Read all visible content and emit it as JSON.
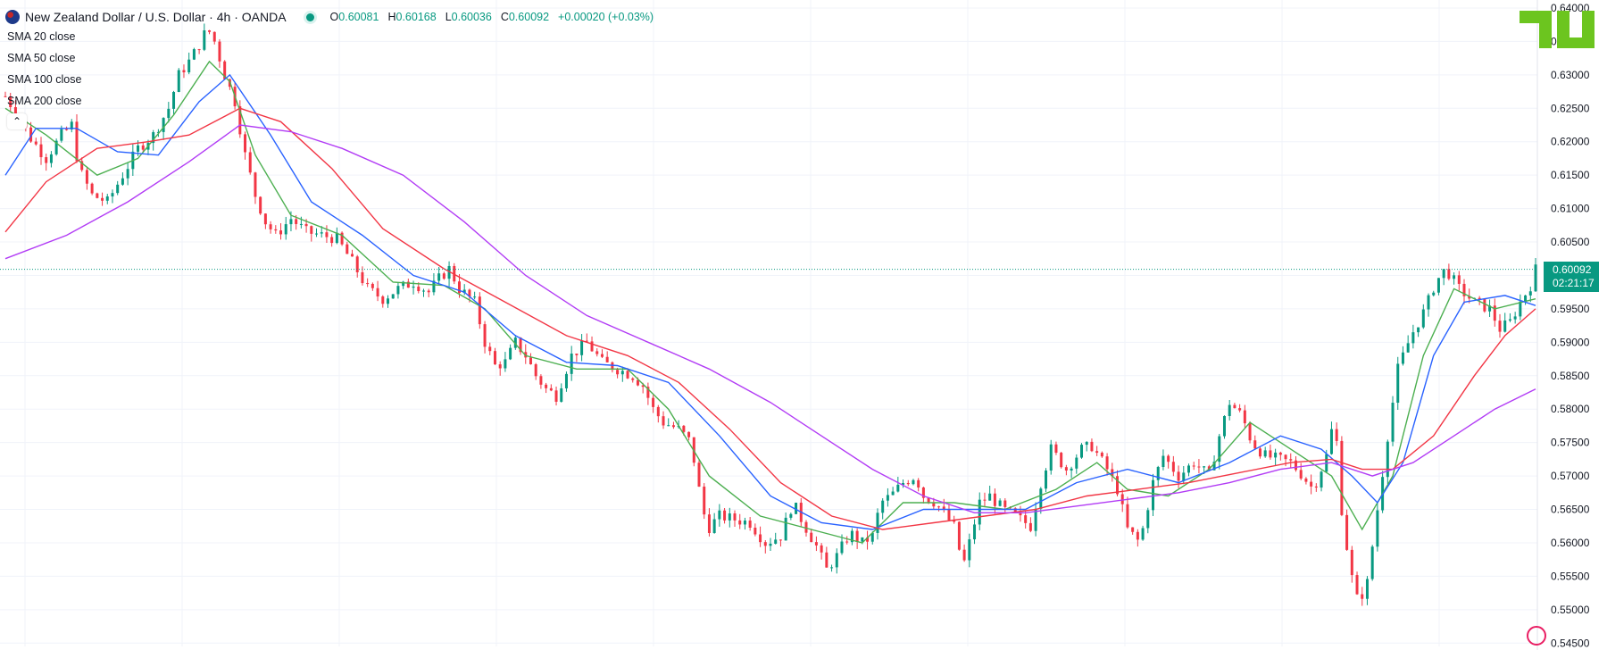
{
  "header": {
    "symbol": "New Zealand Dollar / U.S. Dollar · 4h · OANDA",
    "open_label": "O",
    "open": "0.60081",
    "high_label": "H",
    "high": "0.60168",
    "low_label": "L",
    "low": "0.60036",
    "close_label": "C",
    "close": "0.60092",
    "change": "+0.00020 (+0.03%)"
  },
  "indicators": [
    {
      "label": "SMA",
      "params": "20 close",
      "color": "#4caf50"
    },
    {
      "label": "SMA",
      "params": "50 close",
      "color": "#2962ff"
    },
    {
      "label": "SMA",
      "params": "100 close",
      "color": "#f23645"
    },
    {
      "label": "SMA",
      "params": "200 close",
      "color": "#b23cf5"
    }
  ],
  "price_badge": {
    "price": "0.60092",
    "countdown": "02:21:17"
  },
  "colors": {
    "up": "#089981",
    "down": "#f23645",
    "grid": "#f0f3fa",
    "axis_text": "#131722"
  },
  "chart_data": {
    "type": "candlestick",
    "title": "New Zealand Dollar / U.S. Dollar · 4h · OANDA",
    "y_axis_ticks": [
      "0.54500",
      "0.55000",
      "0.55500",
      "0.56000",
      "0.56500",
      "0.57000",
      "0.57500",
      "0.58000",
      "0.58500",
      "0.59000",
      "0.59500",
      "0.60000",
      "0.60500",
      "0.61000",
      "0.61500",
      "0.62000",
      "0.62500",
      "0.63000",
      "0.63500",
      "0.64000"
    ],
    "ylim": [
      0.5445,
      0.6412
    ],
    "last_price": 0.60092,
    "grid": true,
    "price_path": [
      [
        0,
        0.6268
      ],
      [
        12,
        0.624
      ],
      [
        25,
        0.6205
      ],
      [
        40,
        0.6175
      ],
      [
        55,
        0.621
      ],
      [
        65,
        0.6225
      ],
      [
        72,
        0.616
      ],
      [
        85,
        0.612
      ],
      [
        100,
        0.611
      ],
      [
        115,
        0.615
      ],
      [
        130,
        0.619
      ],
      [
        145,
        0.621
      ],
      [
        160,
        0.625
      ],
      [
        170,
        0.63
      ],
      [
        180,
        0.632
      ],
      [
        190,
        0.6345
      ],
      [
        198,
        0.637
      ],
      [
        205,
        0.635
      ],
      [
        215,
        0.63
      ],
      [
        225,
        0.626
      ],
      [
        235,
        0.618
      ],
      [
        245,
        0.612
      ],
      [
        255,
        0.608
      ],
      [
        265,
        0.606
      ],
      [
        280,
        0.6085
      ],
      [
        295,
        0.6065
      ],
      [
        310,
        0.606
      ],
      [
        325,
        0.6055
      ],
      [
        340,
        0.602
      ],
      [
        355,
        0.598
      ],
      [
        370,
        0.5965
      ],
      [
        385,
        0.598
      ],
      [
        400,
        0.599
      ],
      [
        415,
        0.5975
      ],
      [
        425,
        0.5995
      ],
      [
        435,
        0.601
      ],
      [
        445,
        0.598
      ],
      [
        460,
        0.596
      ],
      [
        470,
        0.59
      ],
      [
        480,
        0.5865
      ],
      [
        490,
        0.587
      ],
      [
        500,
        0.59
      ],
      [
        510,
        0.588
      ],
      [
        520,
        0.585
      ],
      [
        530,
        0.583
      ],
      [
        540,
        0.582
      ],
      [
        555,
        0.588
      ],
      [
        570,
        0.59
      ],
      [
        585,
        0.587
      ],
      [
        600,
        0.586
      ],
      [
        615,
        0.585
      ],
      [
        625,
        0.5835
      ],
      [
        635,
        0.58
      ],
      [
        645,
        0.578
      ],
      [
        660,
        0.577
      ],
      [
        672,
        0.575
      ],
      [
        680,
        0.568
      ],
      [
        688,
        0.562
      ],
      [
        700,
        0.564
      ],
      [
        715,
        0.5635
      ],
      [
        730,
        0.563
      ],
      [
        745,
        0.56
      ],
      [
        760,
        0.561
      ],
      [
        772,
        0.566
      ],
      [
        782,
        0.563
      ],
      [
        795,
        0.5595
      ],
      [
        805,
        0.556
      ],
      [
        815,
        0.558
      ],
      [
        828,
        0.5615
      ],
      [
        840,
        0.56
      ],
      [
        850,
        0.561
      ],
      [
        858,
        0.566
      ],
      [
        868,
        0.567
      ],
      [
        880,
        0.569
      ],
      [
        892,
        0.57
      ],
      [
        900,
        0.567
      ],
      [
        912,
        0.566
      ],
      [
        922,
        0.564
      ],
      [
        932,
        0.562
      ],
      [
        938,
        0.556
      ],
      [
        945,
        0.56
      ],
      [
        955,
        0.566
      ],
      [
        965,
        0.567
      ],
      [
        978,
        0.565
      ],
      [
        990,
        0.564
      ],
      [
        1005,
        0.5625
      ],
      [
        1015,
        0.569
      ],
      [
        1025,
        0.574
      ],
      [
        1040,
        0.571
      ],
      [
        1055,
        0.574
      ],
      [
        1065,
        0.5745
      ],
      [
        1080,
        0.571
      ],
      [
        1090,
        0.568
      ],
      [
        1100,
        0.562
      ],
      [
        1112,
        0.56
      ],
      [
        1125,
        0.569
      ],
      [
        1135,
        0.573
      ],
      [
        1150,
        0.57
      ],
      [
        1165,
        0.572
      ],
      [
        1180,
        0.57
      ],
      [
        1190,
        0.576
      ],
      [
        1200,
        0.581
      ],
      [
        1212,
        0.579
      ],
      [
        1222,
        0.575
      ],
      [
        1235,
        0.573
      ],
      [
        1248,
        0.5725
      ],
      [
        1260,
        0.572
      ],
      [
        1272,
        0.57
      ],
      [
        1282,
        0.568
      ],
      [
        1295,
        0.573
      ],
      [
        1303,
        0.579
      ],
      [
        1310,
        0.565
      ],
      [
        1318,
        0.556
      ],
      [
        1326,
        0.551
      ],
      [
        1335,
        0.554
      ],
      [
        1345,
        0.565
      ],
      [
        1355,
        0.576
      ],
      [
        1365,
        0.586
      ],
      [
        1378,
        0.591
      ],
      [
        1392,
        0.595
      ],
      [
        1402,
        0.599
      ],
      [
        1412,
        0.601
      ],
      [
        1425,
        0.598
      ],
      [
        1440,
        0.596
      ],
      [
        1455,
        0.595
      ],
      [
        1465,
        0.592
      ],
      [
        1475,
        0.593
      ],
      [
        1485,
        0.596
      ],
      [
        1495,
        0.5985
      ],
      [
        1500,
        0.6009
      ]
    ],
    "x_max": 1500,
    "series": [
      {
        "name": "SMA 20 close",
        "color": "#4caf50",
        "points": [
          [
            0,
            0.625
          ],
          [
            40,
            0.621
          ],
          [
            90,
            0.615
          ],
          [
            130,
            0.6175
          ],
          [
            165,
            0.624
          ],
          [
            200,
            0.632
          ],
          [
            220,
            0.629
          ],
          [
            245,
            0.618
          ],
          [
            280,
            0.609
          ],
          [
            330,
            0.606
          ],
          [
            380,
            0.599
          ],
          [
            430,
            0.5985
          ],
          [
            470,
            0.595
          ],
          [
            510,
            0.588
          ],
          [
            560,
            0.586
          ],
          [
            610,
            0.586
          ],
          [
            650,
            0.58
          ],
          [
            690,
            0.57
          ],
          [
            740,
            0.564
          ],
          [
            790,
            0.562
          ],
          [
            840,
            0.56
          ],
          [
            880,
            0.566
          ],
          [
            930,
            0.566
          ],
          [
            980,
            0.565
          ],
          [
            1030,
            0.568
          ],
          [
            1070,
            0.572
          ],
          [
            1100,
            0.568
          ],
          [
            1140,
            0.567
          ],
          [
            1180,
            0.571
          ],
          [
            1220,
            0.578
          ],
          [
            1260,
            0.574
          ],
          [
            1300,
            0.57
          ],
          [
            1330,
            0.562
          ],
          [
            1360,
            0.57
          ],
          [
            1390,
            0.588
          ],
          [
            1420,
            0.598
          ],
          [
            1460,
            0.595
          ],
          [
            1500,
            0.5965
          ]
        ]
      },
      {
        "name": "SMA 50 close",
        "color": "#2962ff",
        "points": [
          [
            0,
            0.615
          ],
          [
            30,
            0.622
          ],
          [
            70,
            0.622
          ],
          [
            110,
            0.6185
          ],
          [
            150,
            0.618
          ],
          [
            190,
            0.626
          ],
          [
            220,
            0.63
          ],
          [
            260,
            0.621
          ],
          [
            300,
            0.611
          ],
          [
            350,
            0.606
          ],
          [
            400,
            0.6
          ],
          [
            450,
            0.5975
          ],
          [
            500,
            0.591
          ],
          [
            550,
            0.587
          ],
          [
            600,
            0.5865
          ],
          [
            650,
            0.584
          ],
          [
            700,
            0.576
          ],
          [
            750,
            0.567
          ],
          [
            800,
            0.563
          ],
          [
            850,
            0.562
          ],
          [
            900,
            0.565
          ],
          [
            950,
            0.565
          ],
          [
            1000,
            0.565
          ],
          [
            1050,
            0.569
          ],
          [
            1100,
            0.571
          ],
          [
            1150,
            0.569
          ],
          [
            1200,
            0.572
          ],
          [
            1250,
            0.576
          ],
          [
            1290,
            0.574
          ],
          [
            1320,
            0.57
          ],
          [
            1345,
            0.566
          ],
          [
            1370,
            0.572
          ],
          [
            1400,
            0.588
          ],
          [
            1430,
            0.596
          ],
          [
            1470,
            0.597
          ],
          [
            1500,
            0.5955
          ]
        ]
      },
      {
        "name": "SMA 100 close",
        "color": "#f23645",
        "points": [
          [
            0,
            0.6065
          ],
          [
            40,
            0.614
          ],
          [
            90,
            0.619
          ],
          [
            140,
            0.62
          ],
          [
            180,
            0.621
          ],
          [
            230,
            0.625
          ],
          [
            270,
            0.623
          ],
          [
            320,
            0.616
          ],
          [
            370,
            0.607
          ],
          [
            430,
            0.601
          ],
          [
            490,
            0.596
          ],
          [
            550,
            0.591
          ],
          [
            610,
            0.588
          ],
          [
            660,
            0.584
          ],
          [
            710,
            0.577
          ],
          [
            760,
            0.569
          ],
          [
            810,
            0.564
          ],
          [
            860,
            0.562
          ],
          [
            910,
            0.563
          ],
          [
            960,
            0.564
          ],
          [
            1010,
            0.565
          ],
          [
            1060,
            0.567
          ],
          [
            1110,
            0.568
          ],
          [
            1160,
            0.569
          ],
          [
            1210,
            0.5705
          ],
          [
            1260,
            0.572
          ],
          [
            1300,
            0.5725
          ],
          [
            1330,
            0.571
          ],
          [
            1360,
            0.571
          ],
          [
            1400,
            0.576
          ],
          [
            1440,
            0.585
          ],
          [
            1470,
            0.591
          ],
          [
            1500,
            0.595
          ]
        ]
      },
      {
        "name": "SMA 200 close",
        "color": "#b23cf5",
        "points": [
          [
            0,
            0.6025
          ],
          [
            60,
            0.606
          ],
          [
            120,
            0.611
          ],
          [
            180,
            0.617
          ],
          [
            230,
            0.6225
          ],
          [
            280,
            0.6215
          ],
          [
            330,
            0.619
          ],
          [
            390,
            0.615
          ],
          [
            450,
            0.608
          ],
          [
            510,
            0.6
          ],
          [
            570,
            0.594
          ],
          [
            630,
            0.59
          ],
          [
            690,
            0.586
          ],
          [
            750,
            0.581
          ],
          [
            800,
            0.576
          ],
          [
            850,
            0.571
          ],
          [
            900,
            0.567
          ],
          [
            950,
            0.5645
          ],
          [
            1000,
            0.5645
          ],
          [
            1050,
            0.5655
          ],
          [
            1100,
            0.5665
          ],
          [
            1150,
            0.5675
          ],
          [
            1200,
            0.569
          ],
          [
            1250,
            0.571
          ],
          [
            1300,
            0.572
          ],
          [
            1340,
            0.57
          ],
          [
            1380,
            0.572
          ],
          [
            1420,
            0.576
          ],
          [
            1460,
            0.58
          ],
          [
            1500,
            0.583
          ]
        ]
      }
    ]
  }
}
